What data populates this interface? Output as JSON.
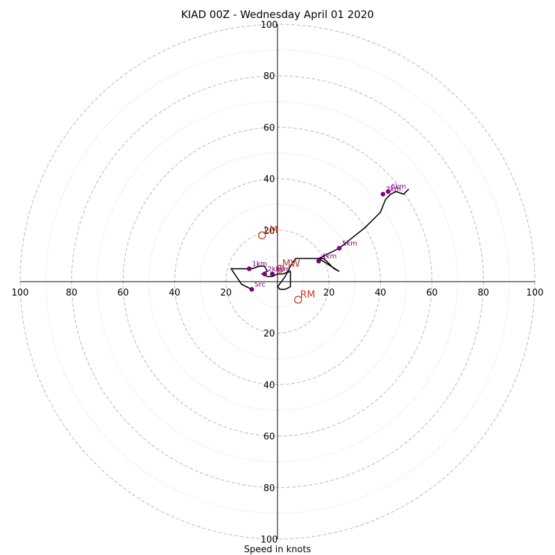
{
  "chart_data": {
    "type": "hodograph",
    "title": "KIAD 00Z - Wednesday April 01 2020",
    "xlabel": "Speed in knots",
    "range": [
      -100,
      100
    ],
    "major_rings": [
      20,
      40,
      60,
      80,
      100
    ],
    "minor_rings": [
      10,
      30,
      50,
      70,
      90
    ],
    "x_tick_labels": [
      {
        "value": -100,
        "label": "100"
      },
      {
        "value": -80,
        "label": "80"
      },
      {
        "value": -60,
        "label": "60"
      },
      {
        "value": -40,
        "label": "40"
      },
      {
        "value": -20,
        "label": "20"
      },
      {
        "value": 20,
        "label": "20"
      },
      {
        "value": 40,
        "label": "40"
      },
      {
        "value": 60,
        "label": "60"
      },
      {
        "value": 80,
        "label": "80"
      },
      {
        "value": 100,
        "label": "100"
      }
    ],
    "y_tick_labels": [
      {
        "value": 100,
        "label": "100"
      },
      {
        "value": 80,
        "label": "80"
      },
      {
        "value": 60,
        "label": "60"
      },
      {
        "value": 40,
        "label": "40"
      },
      {
        "value": 20,
        "label": "20"
      },
      {
        "value": -20,
        "label": "20"
      },
      {
        "value": -40,
        "label": "40"
      },
      {
        "value": -60,
        "label": "60"
      },
      {
        "value": -80,
        "label": "80"
      },
      {
        "value": -100,
        "label": "100"
      }
    ],
    "line_color": "#000000",
    "height_color": "#800080",
    "motion_color": "#c0392b",
    "hodograph": {
      "u": [
        -10,
        -14,
        -18,
        -14,
        -10,
        -7,
        -5,
        -4,
        -6,
        -4,
        -2,
        0,
        2,
        5,
        5,
        3,
        1,
        0,
        3,
        5,
        7,
        10,
        14,
        18,
        20,
        22,
        24,
        16,
        20,
        24,
        29,
        34,
        38,
        40,
        42,
        44,
        46,
        49,
        51
      ],
      "v": [
        -3,
        -1,
        5,
        5,
        5,
        6,
        6,
        4,
        3,
        2,
        2,
        3,
        3,
        4,
        -2,
        -3,
        -3,
        -2,
        2,
        6,
        9,
        9,
        9,
        9,
        7,
        5,
        4,
        9,
        11,
        13,
        17,
        21,
        25,
        27,
        32,
        34,
        35,
        34,
        36
      ]
    },
    "height_points": [
      {
        "label": "Src",
        "u": -10,
        "v": -3
      },
      {
        "label": "1km",
        "u": -11,
        "v": 5
      },
      {
        "label": "2km",
        "u": -5,
        "v": 3
      },
      {
        "label": "3km",
        "u": -2,
        "v": 3
      },
      {
        "label": "4km",
        "u": 16,
        "v": 8
      },
      {
        "label": "5km",
        "u": 24,
        "v": 13
      },
      {
        "label": "7km",
        "u": 41,
        "v": 34
      },
      {
        "label": "6km",
        "u": 43,
        "v": 35
      }
    ],
    "storm_motion": [
      {
        "label": "LM",
        "u": -6,
        "v": 18
      },
      {
        "label": "MW",
        "u": 1,
        "v": 5
      },
      {
        "label": "RM",
        "u": 8,
        "v": -7
      }
    ]
  }
}
